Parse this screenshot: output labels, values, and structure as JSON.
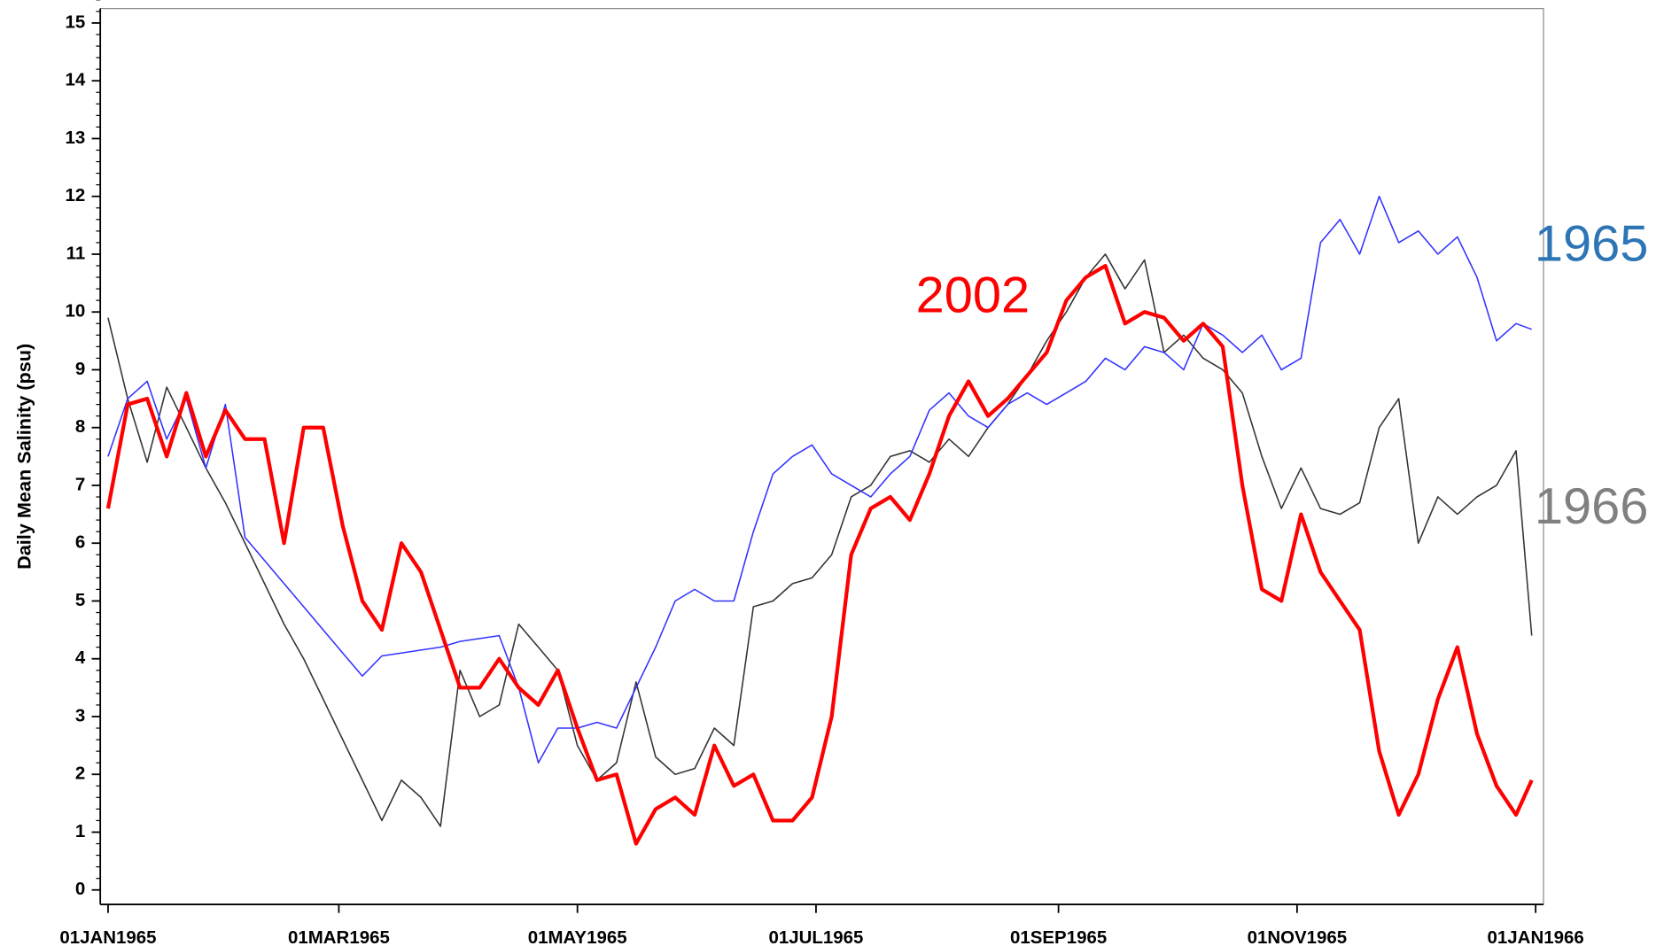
{
  "chart_data": {
    "type": "line",
    "y_label": "Daily Mean Salinity (psu)",
    "x": [
      "1965-01-01",
      "1965-01-06",
      "1965-01-11",
      "1965-01-16",
      "1965-01-21",
      "1965-01-26",
      "1965-01-31",
      "1965-02-05",
      "1965-02-10",
      "1965-02-15",
      "1965-02-20",
      "1965-02-25",
      "1965-03-02",
      "1965-03-07",
      "1965-03-12",
      "1965-03-17",
      "1965-03-22",
      "1965-03-27",
      "1965-04-01",
      "1965-04-06",
      "1965-04-11",
      "1965-04-16",
      "1965-04-21",
      "1965-04-26",
      "1965-05-01",
      "1965-05-06",
      "1965-05-11",
      "1965-05-16",
      "1965-05-21",
      "1965-05-26",
      "1965-05-31",
      "1965-06-05",
      "1965-06-10",
      "1965-06-15",
      "1965-06-20",
      "1965-06-25",
      "1965-06-30",
      "1965-07-05",
      "1965-07-10",
      "1965-07-15",
      "1965-07-20",
      "1965-07-25",
      "1965-07-30",
      "1965-08-04",
      "1965-08-09",
      "1965-08-14",
      "1965-08-19",
      "1965-08-24",
      "1965-08-29",
      "1965-09-03",
      "1965-09-08",
      "1965-09-13",
      "1965-09-18",
      "1965-09-23",
      "1965-09-28",
      "1965-10-03",
      "1965-10-08",
      "1965-10-13",
      "1965-10-18",
      "1965-10-23",
      "1965-10-28",
      "1965-11-02",
      "1965-11-07",
      "1965-11-12",
      "1965-11-17",
      "1965-11-22",
      "1965-11-27",
      "1965-12-02",
      "1965-12-07",
      "1965-12-12",
      "1965-12-17",
      "1965-12-22",
      "1965-12-27",
      "1965-12-31"
    ],
    "series": [
      {
        "name": "1965",
        "color": "#3333ff",
        "label_color": "#2e75b6",
        "width": 1.3,
        "values": [
          7.5,
          8.5,
          8.8,
          7.8,
          8.5,
          7.3,
          8.4,
          6.1,
          5.7,
          5.3,
          4.9,
          4.5,
          4.1,
          3.7,
          4.05,
          4.1,
          4.15,
          4.2,
          4.3,
          4.35,
          4.4,
          3.5,
          2.2,
          2.8,
          2.8,
          2.9,
          2.8,
          3.5,
          4.2,
          5.0,
          5.2,
          5.0,
          5.0,
          6.2,
          7.2,
          7.5,
          7.7,
          7.2,
          7.0,
          6.8,
          7.2,
          7.5,
          8.3,
          8.6,
          8.2,
          8.0,
          8.4,
          8.6,
          8.4,
          8.6,
          8.8,
          9.2,
          9.0,
          9.4,
          9.3,
          9.0,
          9.8,
          9.6,
          9.3,
          9.6,
          9.0,
          9.2,
          11.2,
          11.6,
          11.0,
          12.0,
          11.2,
          11.4,
          11.0,
          11.3,
          10.6,
          9.5,
          9.8,
          9.7
        ]
      },
      {
        "name": "1966",
        "color": "#333333",
        "label_color": "#808080",
        "width": 1.3,
        "values": [
          9.9,
          8.5,
          7.4,
          8.7,
          8.0,
          7.3,
          6.7,
          6.0,
          5.3,
          4.6,
          4.0,
          3.3,
          2.6,
          1.9,
          1.2,
          1.9,
          1.6,
          1.1,
          3.8,
          3.0,
          3.2,
          4.6,
          4.2,
          3.8,
          2.5,
          1.9,
          2.2,
          3.6,
          2.3,
          2.0,
          2.1,
          2.8,
          2.5,
          4.9,
          5.0,
          5.3,
          5.4,
          5.8,
          6.8,
          7.0,
          7.5,
          7.6,
          7.4,
          7.8,
          7.5,
          8.0,
          8.4,
          8.9,
          9.5,
          10.0,
          10.6,
          11.0,
          10.4,
          10.9,
          9.3,
          9.6,
          9.2,
          9.0,
          8.6,
          7.5,
          6.6,
          7.3,
          6.6,
          6.5,
          6.7,
          8.0,
          8.5,
          6.0,
          6.8,
          6.5,
          6.8,
          7.0,
          7.6,
          4.4
        ]
      },
      {
        "name": "2002",
        "color": "#ff0000",
        "label_color": "#ff0000",
        "width": 3.5,
        "values": [
          6.6,
          8.4,
          8.5,
          7.5,
          8.6,
          7.5,
          8.3,
          7.8,
          7.8,
          6.0,
          8.0,
          8.0,
          6.3,
          5.0,
          4.5,
          6.0,
          5.5,
          4.5,
          3.5,
          3.5,
          4.0,
          3.5,
          3.2,
          3.8,
          2.8,
          1.9,
          2.0,
          0.8,
          1.4,
          1.6,
          1.3,
          2.5,
          1.8,
          2.0,
          1.2,
          1.2,
          1.6,
          3.0,
          5.8,
          6.6,
          6.8,
          6.4,
          7.2,
          8.2,
          8.8,
          8.2,
          8.5,
          8.9,
          9.3,
          10.2,
          10.6,
          10.8,
          9.8,
          10.0,
          9.9,
          9.5,
          9.8,
          9.4,
          7.0,
          5.2,
          5.0,
          6.5,
          5.5,
          5.0,
          4.5,
          2.4,
          1.3,
          2.0,
          3.3,
          4.2,
          2.7,
          1.8,
          1.3,
          1.9
        ]
      }
    ],
    "xlim": [
      "1964-12-30",
      "1966-01-03"
    ],
    "xticks": [
      {
        "value": "1965-01-01",
        "label": "01JAN1965"
      },
      {
        "value": "1965-03-01",
        "label": "01MAR1965"
      },
      {
        "value": "1965-05-01",
        "label": "01MAY1965"
      },
      {
        "value": "1965-07-01",
        "label": "01JUL1965"
      },
      {
        "value": "1965-09-01",
        "label": "01SEP1965"
      },
      {
        "value": "1965-11-01",
        "label": "01NOV1965"
      },
      {
        "value": "1966-01-01",
        "label": "01JAN1966"
      }
    ],
    "ylim": [
      -0.25,
      15.25
    ],
    "yticks": [
      0,
      1,
      2,
      3,
      4,
      5,
      6,
      7,
      8,
      9,
      10,
      11,
      12,
      13,
      14,
      15
    ],
    "grid": false
  }
}
